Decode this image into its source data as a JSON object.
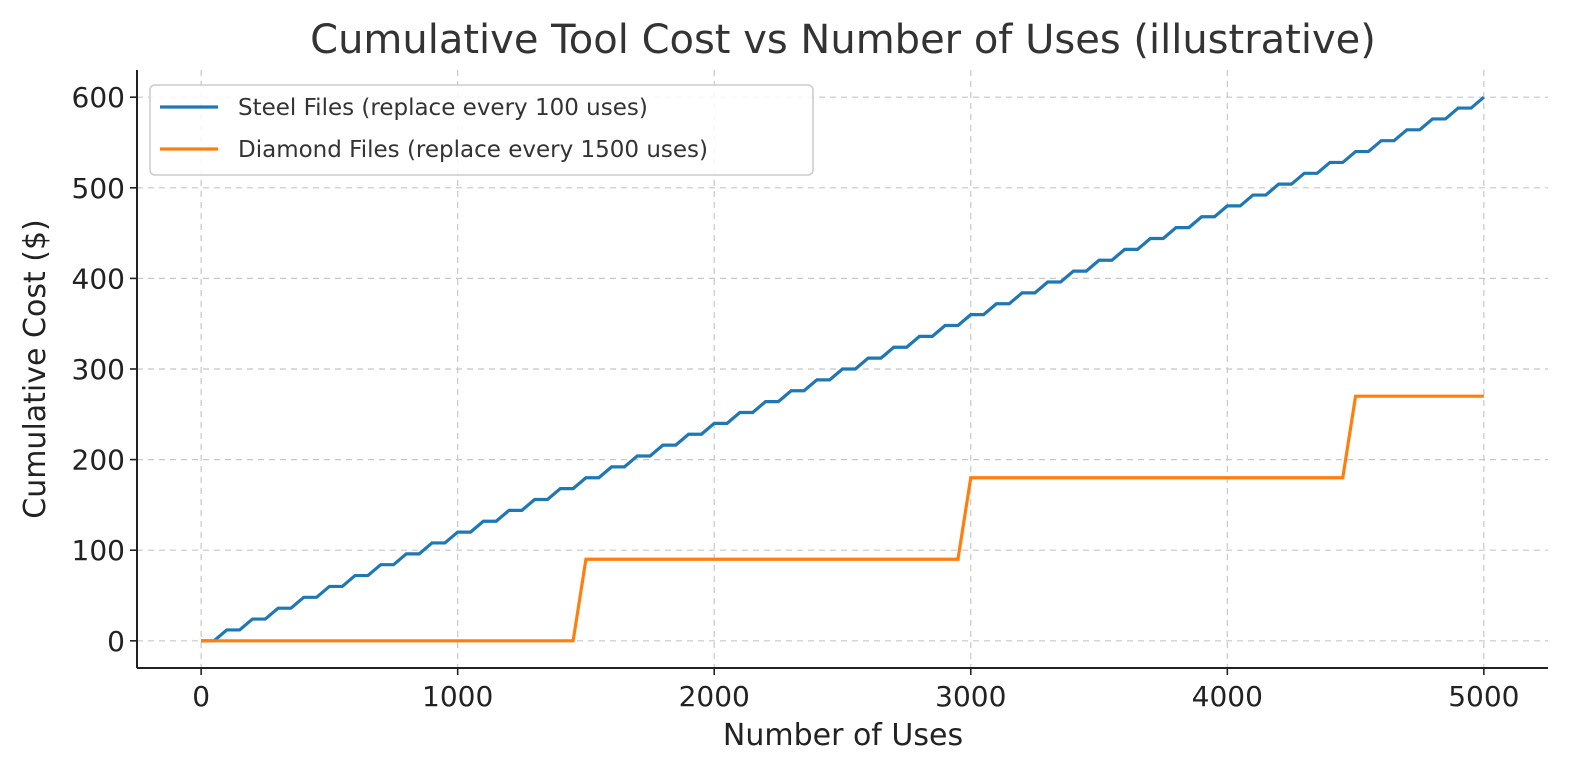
{
  "chart_data": {
    "type": "line",
    "title": "Cumulative Tool Cost vs Number of Uses (illustrative)",
    "xlabel": "Number of Uses",
    "ylabel": "Cumulative Cost ($)",
    "xlim": [
      -250,
      5250
    ],
    "ylim": [
      -30,
      630
    ],
    "xticks": [
      0,
      1000,
      2000,
      3000,
      4000,
      5000
    ],
    "yticks": [
      0,
      100,
      200,
      300,
      400,
      500,
      600
    ],
    "xtick_labels": [
      "0",
      "1000",
      "2000",
      "3000",
      "4000",
      "5000"
    ],
    "ytick_labels": [
      "0",
      "100",
      "200",
      "300",
      "400",
      "500",
      "600"
    ],
    "grid": true,
    "legend_position": "top-left",
    "series": [
      {
        "name": "Steel Files (replace every 100 uses)",
        "color": "#1f77b4",
        "step_every": 100,
        "cost_per_step": 12,
        "x": [
          0,
          50,
          100,
          150,
          200,
          250,
          300,
          350,
          400,
          450,
          500,
          550,
          600,
          650,
          700,
          750,
          800,
          850,
          900,
          950,
          1000,
          1050,
          1100,
          1150,
          1200,
          1250,
          1300,
          1350,
          1400,
          1450,
          1500,
          1550,
          1600,
          1650,
          1700,
          1750,
          1800,
          1850,
          1900,
          1950,
          2000,
          2050,
          2100,
          2150,
          2200,
          2250,
          2300,
          2350,
          2400,
          2450,
          2500,
          2550,
          2600,
          2650,
          2700,
          2750,
          2800,
          2850,
          2900,
          2950,
          3000,
          3050,
          3100,
          3150,
          3200,
          3250,
          3300,
          3350,
          3400,
          3450,
          3500,
          3550,
          3600,
          3650,
          3700,
          3750,
          3800,
          3850,
          3900,
          3950,
          4000,
          4050,
          4100,
          4150,
          4200,
          4250,
          4300,
          4350,
          4400,
          4450,
          4500,
          4550,
          4600,
          4650,
          4700,
          4750,
          4800,
          4850,
          4900,
          4950,
          5000
        ],
        "values": [
          0,
          0,
          12,
          12,
          24,
          24,
          36,
          36,
          48,
          48,
          60,
          60,
          72,
          72,
          84,
          84,
          96,
          96,
          108,
          108,
          120,
          120,
          132,
          132,
          144,
          144,
          156,
          156,
          168,
          168,
          180,
          180,
          192,
          192,
          204,
          204,
          216,
          216,
          228,
          228,
          240,
          240,
          252,
          252,
          264,
          264,
          276,
          276,
          288,
          288,
          300,
          300,
          312,
          312,
          324,
          324,
          336,
          336,
          348,
          348,
          360,
          360,
          372,
          372,
          384,
          384,
          396,
          396,
          408,
          408,
          420,
          420,
          432,
          432,
          444,
          444,
          456,
          456,
          468,
          468,
          480,
          480,
          492,
          492,
          504,
          504,
          516,
          516,
          528,
          528,
          540,
          540,
          552,
          552,
          564,
          564,
          576,
          576,
          588,
          588,
          600
        ]
      },
      {
        "name": "Diamond Files (replace every 1500 uses)",
        "color": "#ff7f0e",
        "step_every": 1500,
        "cost_per_step": 90,
        "x": [
          0,
          1450,
          1500,
          2950,
          3000,
          4450,
          4500,
          5000
        ],
        "values": [
          0,
          0,
          90,
          90,
          180,
          180,
          270,
          270
        ]
      }
    ]
  }
}
